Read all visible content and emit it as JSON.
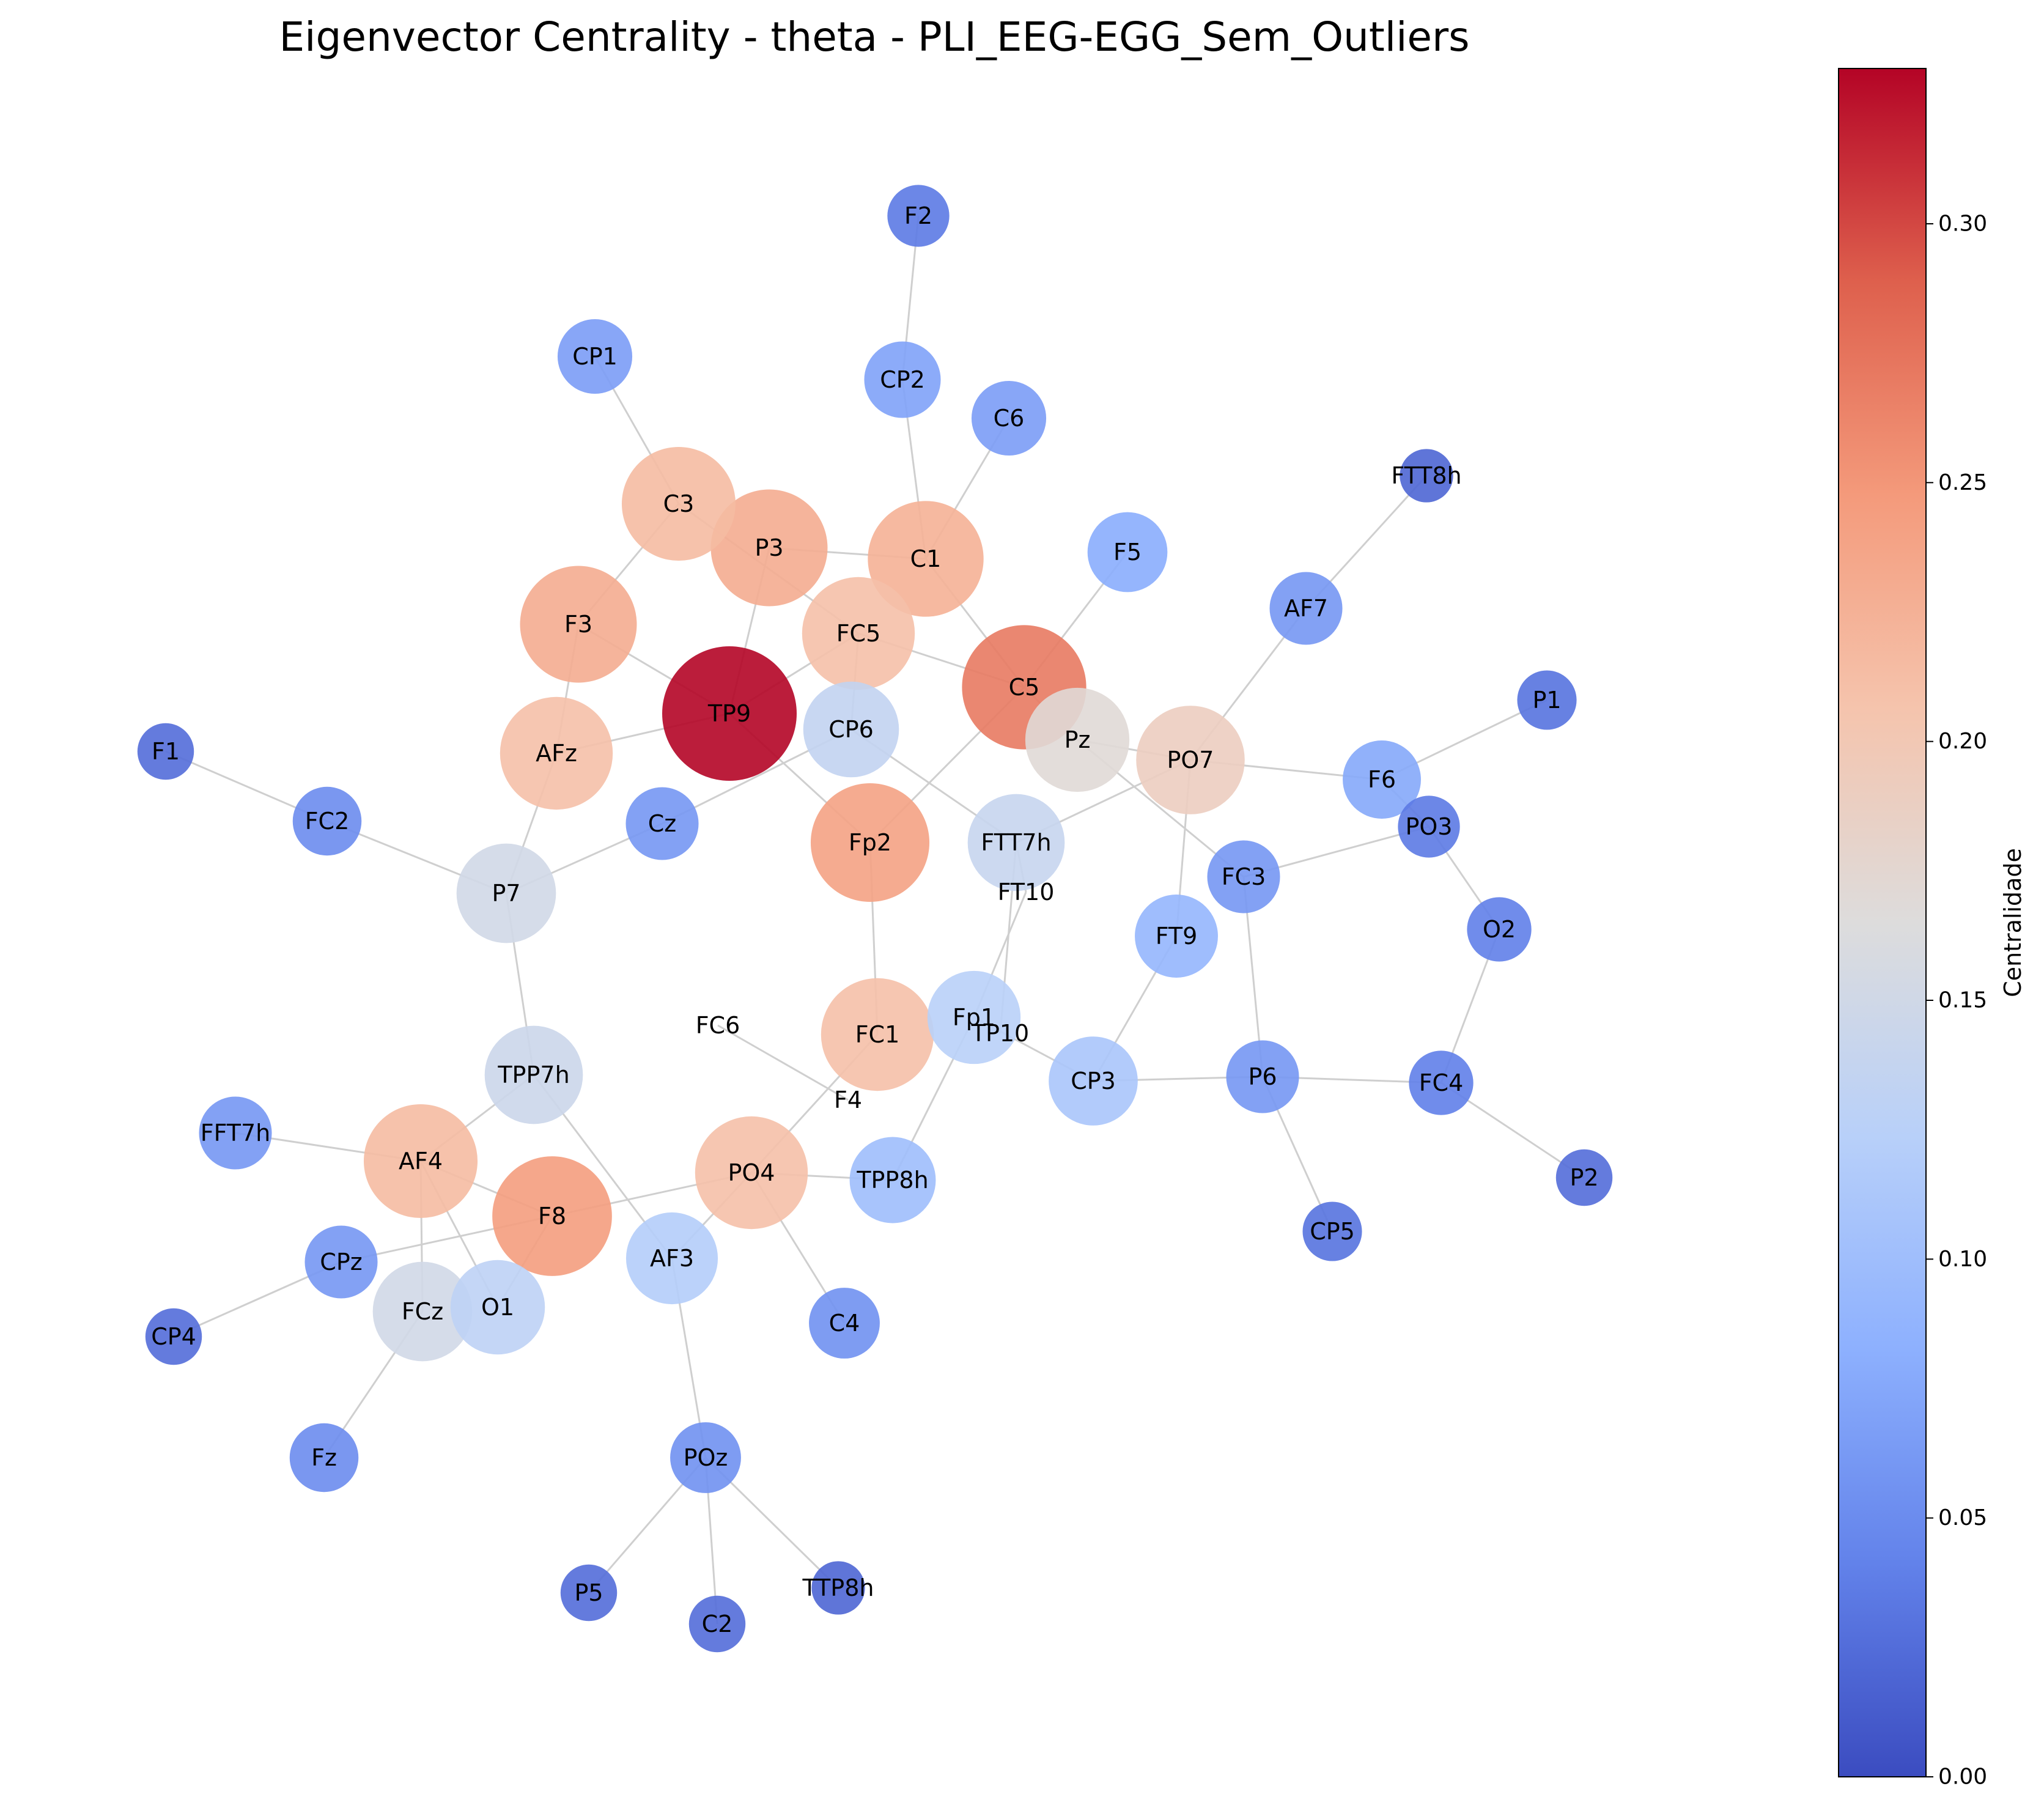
{
  "title": "Eigenvector Centrality - theta - PLI_EEG-EGG_Sem_Outliers",
  "colorbar": {
    "label": "Centralidade",
    "min": 0.0,
    "max": 0.33,
    "ticks": [
      {
        "value": 0.0,
        "label": "0.00"
      },
      {
        "value": 0.05,
        "label": "0.05"
      },
      {
        "value": 0.1,
        "label": "0.10"
      },
      {
        "value": 0.15,
        "label": "0.15"
      },
      {
        "value": 0.2,
        "label": "0.20"
      },
      {
        "value": 0.25,
        "label": "0.25"
      },
      {
        "value": 0.3,
        "label": "0.30"
      }
    ],
    "colormap": "coolwarm",
    "colors": [
      "#3b4cc0",
      "#7b9ff9",
      "#c0d4f5",
      "#dddcdc",
      "#f2cbb7",
      "#ee8468",
      "#b40426"
    ]
  },
  "chart_data": {
    "type": "network",
    "nodes": [
      {
        "id": "TP9",
        "value": 0.33
      },
      {
        "id": "C5",
        "value": 0.27
      },
      {
        "id": "F8",
        "value": 0.245
      },
      {
        "id": "Fp2",
        "value": 0.24
      },
      {
        "id": "F3",
        "value": 0.23
      },
      {
        "id": "P3",
        "value": 0.23
      },
      {
        "id": "C1",
        "value": 0.225
      },
      {
        "id": "C3",
        "value": 0.215
      },
      {
        "id": "AF4",
        "value": 0.215
      },
      {
        "id": "FC1",
        "value": 0.21
      },
      {
        "id": "FC5",
        "value": 0.21
      },
      {
        "id": "AFz",
        "value": 0.21
      },
      {
        "id": "PO4",
        "value": 0.21
      },
      {
        "id": "PO7",
        "value": 0.19
      },
      {
        "id": "Pz",
        "value": 0.17
      },
      {
        "id": "P7",
        "value": 0.15
      },
      {
        "id": "FCz",
        "value": 0.15
      },
      {
        "id": "TPP7h",
        "value": 0.145
      },
      {
        "id": "FTT7h",
        "value": 0.14
      },
      {
        "id": "CP6",
        "value": 0.135
      },
      {
        "id": "O1",
        "value": 0.13
      },
      {
        "id": "Fp1",
        "value": 0.125
      },
      {
        "id": "AF3",
        "value": 0.12
      },
      {
        "id": "CP3",
        "value": 0.11
      },
      {
        "id": "TPP8h",
        "value": 0.1
      },
      {
        "id": "FT9",
        "value": 0.09
      },
      {
        "id": "F5",
        "value": 0.08
      },
      {
        "id": "F6",
        "value": 0.075
      },
      {
        "id": "CP2",
        "value": 0.07
      },
      {
        "id": "CP1",
        "value": 0.065
      },
      {
        "id": "C6",
        "value": 0.065
      },
      {
        "id": "AF7",
        "value": 0.06
      },
      {
        "id": "FC3",
        "value": 0.06
      },
      {
        "id": "P6",
        "value": 0.06
      },
      {
        "id": "Cz",
        "value": 0.06
      },
      {
        "id": "FFT7h",
        "value": 0.06
      },
      {
        "id": "CPz",
        "value": 0.06
      },
      {
        "id": "C4",
        "value": 0.055
      },
      {
        "id": "POz",
        "value": 0.055
      },
      {
        "id": "Fz",
        "value": 0.05
      },
      {
        "id": "FC2",
        "value": 0.05
      },
      {
        "id": "O2",
        "value": 0.04
      },
      {
        "id": "FC4",
        "value": 0.04
      },
      {
        "id": "PO3",
        "value": 0.035
      },
      {
        "id": "F2",
        "value": 0.035
      },
      {
        "id": "P1",
        "value": 0.03
      },
      {
        "id": "CP5",
        "value": 0.03
      },
      {
        "id": "P2",
        "value": 0.025
      },
      {
        "id": "FTT8h",
        "value": 0.02
      },
      {
        "id": "F1",
        "value": 0.025
      },
      {
        "id": "CP4",
        "value": 0.025
      },
      {
        "id": "P5",
        "value": 0.025
      },
      {
        "id": "C2",
        "value": 0.025
      },
      {
        "id": "TTP8h",
        "value": 0.02
      },
      {
        "id": "FT10",
        "value": 0.0
      },
      {
        "id": "TP10",
        "value": 0.0
      },
      {
        "id": "FC6",
        "value": 0.0
      },
      {
        "id": "F4",
        "value": 0.0
      }
    ],
    "edges": [
      [
        "F2",
        "CP2"
      ],
      [
        "CP2",
        "C1"
      ],
      [
        "C6",
        "C1"
      ],
      [
        "CP1",
        "C3"
      ],
      [
        "C3",
        "F3"
      ],
      [
        "C3",
        "FC5"
      ],
      [
        "P3",
        "C1"
      ],
      [
        "P3",
        "TP9"
      ],
      [
        "C1",
        "C5"
      ],
      [
        "F3",
        "TP9"
      ],
      [
        "F3",
        "AFz"
      ],
      [
        "FC5",
        "C5"
      ],
      [
        "FC5",
        "CP6"
      ],
      [
        "F5",
        "C5"
      ],
      [
        "C5",
        "Fp2"
      ],
      [
        "C5",
        "Pz"
      ],
      [
        "AFz",
        "TP9"
      ],
      [
        "AFz",
        "P7"
      ],
      [
        "TP9",
        "Fp2"
      ],
      [
        "TP9",
        "FC5"
      ],
      [
        "CP6",
        "Cz"
      ],
      [
        "CP6",
        "FTT7h"
      ],
      [
        "Pz",
        "PO7"
      ],
      [
        "Pz",
        "FC3"
      ],
      [
        "PO7",
        "AF7"
      ],
      [
        "AF7",
        "FTT8h"
      ],
      [
        "PO7",
        "F6"
      ],
      [
        "PO7",
        "FT9"
      ],
      [
        "PO7",
        "FTT7h"
      ],
      [
        "F6",
        "P1"
      ],
      [
        "F6",
        "PO3"
      ],
      [
        "PO3",
        "FC3"
      ],
      [
        "PO3",
        "O2"
      ],
      [
        "O2",
        "FC4"
      ],
      [
        "FC3",
        "P6"
      ],
      [
        "FT9",
        "CP3"
      ],
      [
        "CP3",
        "P6"
      ],
      [
        "P6",
        "FC4"
      ],
      [
        "P6",
        "CP5"
      ],
      [
        "FC4",
        "P2"
      ],
      [
        "F1",
        "FC2"
      ],
      [
        "FC2",
        "P7"
      ],
      [
        "Cz",
        "P7"
      ],
      [
        "P7",
        "TPP7h"
      ],
      [
        "Fp2",
        "FC1"
      ],
      [
        "FTT7h",
        "FT10"
      ],
      [
        "FT10",
        "Fp1"
      ],
      [
        "FTT7h",
        "TP10"
      ],
      [
        "Fp1",
        "CP3"
      ],
      [
        "Fp1",
        "TPP8h"
      ],
      [
        "FC1",
        "PO4"
      ],
      [
        "FC6",
        "F4"
      ],
      [
        "TPP7h",
        "AF4"
      ],
      [
        "TPP7h",
        "AF3"
      ],
      [
        "FFT7h",
        "AF4"
      ],
      [
        "AF4",
        "F8"
      ],
      [
        "AF4",
        "FCz"
      ],
      [
        "AF4",
        "O1"
      ],
      [
        "F8",
        "PO4"
      ],
      [
        "F8",
        "CPz"
      ],
      [
        "F8",
        "O1"
      ],
      [
        "CPz",
        "CP4"
      ],
      [
        "FCz",
        "Fz"
      ],
      [
        "PO4",
        "AF3"
      ],
      [
        "PO4",
        "C4"
      ],
      [
        "PO4",
        "TPP8h"
      ],
      [
        "AF3",
        "POz"
      ],
      [
        "POz",
        "P5"
      ],
      [
        "POz",
        "C2"
      ],
      [
        "POz",
        "TTP8h"
      ]
    ]
  }
}
